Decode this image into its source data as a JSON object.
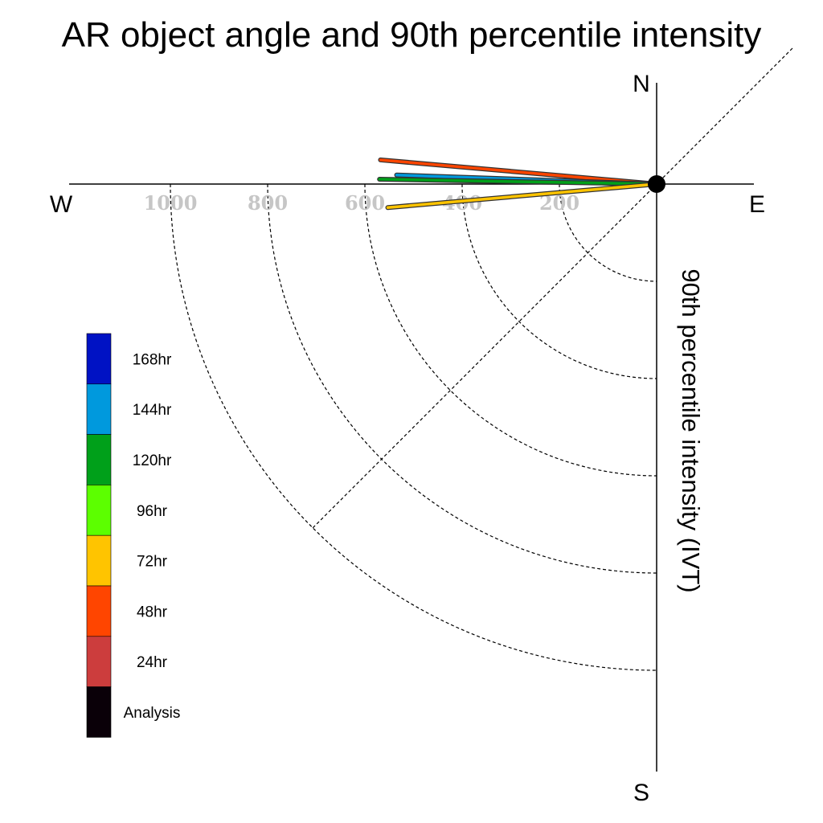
{
  "chart_data": {
    "type": "polar-vector",
    "title": "AR object angle and 90th percentile intensity",
    "ylabel": "90th percentile intensity (IVT)",
    "compass": {
      "north": "N",
      "south": "S",
      "east": "E",
      "west": "W"
    },
    "radial_ticks": [
      200,
      400,
      600,
      800,
      1000
    ],
    "radial_tick_labels": [
      "200",
      "400",
      "600",
      "800",
      "1000"
    ],
    "rmax": 1200,
    "grid": true,
    "series": [
      {
        "name": "48hr",
        "color": "#ff4500",
        "angle_deg": 175,
        "intensity": 570
      },
      {
        "name": "144hr",
        "color": "#0099dd",
        "angle_deg": 178,
        "intensity": 535
      },
      {
        "name": "120hr",
        "color": "#00a01a",
        "angle_deg": 179,
        "intensity": 570
      },
      {
        "name": "72hr",
        "color": "#ffc400",
        "angle_deg": 185,
        "intensity": 555
      }
    ],
    "legend": {
      "placement": "left",
      "entries": [
        {
          "label": "168hr",
          "color": "#0012c4"
        },
        {
          "label": "144hr",
          "color": "#0099dd"
        },
        {
          "label": "120hr",
          "color": "#00a01a"
        },
        {
          "label": "96hr",
          "color": "#5cff00"
        },
        {
          "label": "72hr",
          "color": "#ffc400"
        },
        {
          "label": "48hr",
          "color": "#ff4500"
        },
        {
          "label": "24hr",
          "color": "#cc3d3d"
        },
        {
          "label": "Analysis",
          "color": "#0a0008"
        }
      ]
    }
  }
}
